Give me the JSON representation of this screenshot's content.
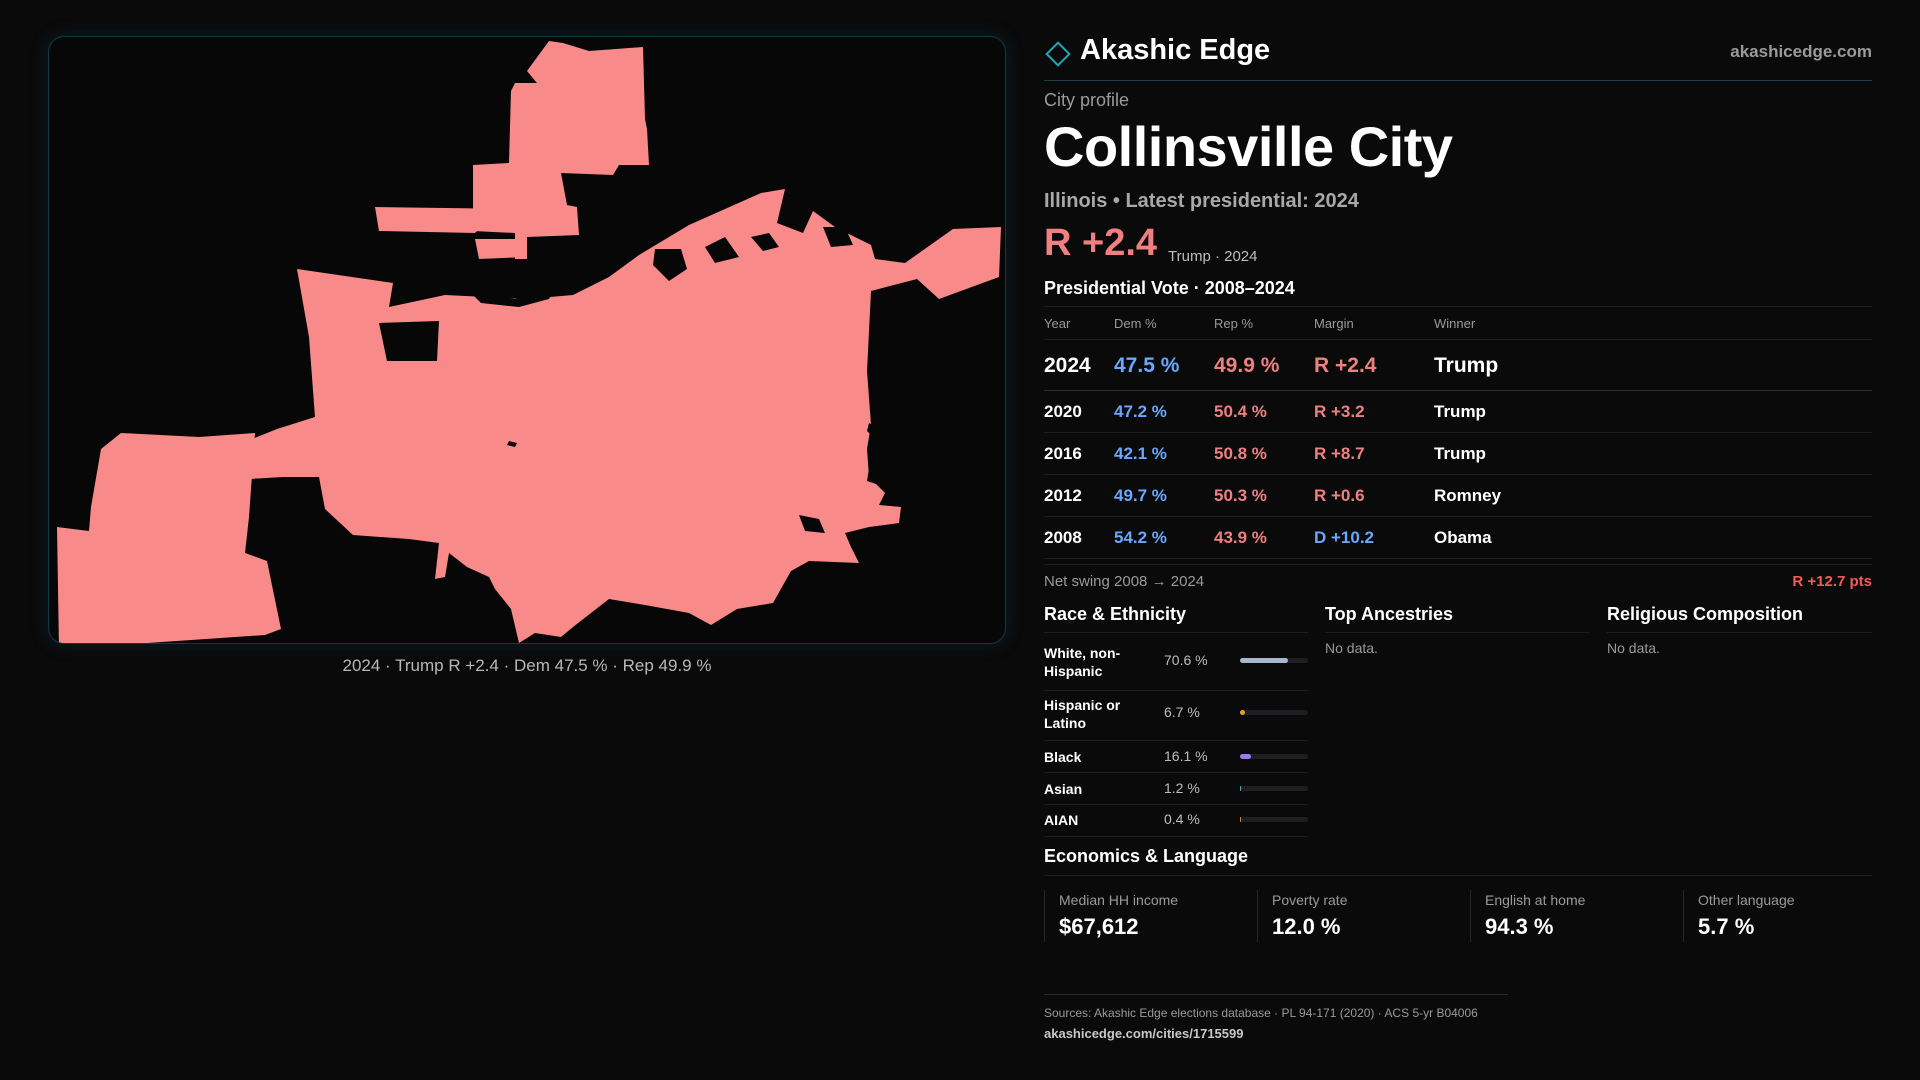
{
  "brand": {
    "name": "Akashic Edge",
    "url": "akashicedge.com"
  },
  "profile": {
    "label": "City profile",
    "city": "Collinsville City",
    "subtitle": "Illinois • Latest presidential: 2024",
    "headline_margin": "R +2.4",
    "headline_note": "Trump · 2024"
  },
  "map": {
    "caption": "2024 · Trump R +2.4 · Dem 47.5 % · Rep 49.9 %",
    "fill_color": "#f98a8a",
    "border_color": "#123a44"
  },
  "vote": {
    "title": "Presidential Vote · 2008–2024",
    "headers": {
      "year": "Year",
      "dem": "Dem %",
      "rep": "Rep %",
      "margin": "Margin",
      "winner": "Winner"
    },
    "rows": [
      {
        "year": "2024",
        "dem": "47.5 %",
        "rep": "49.9 %",
        "margin": "R +2.4",
        "winner": "Trump",
        "party": "R"
      },
      {
        "year": "2020",
        "dem": "47.2 %",
        "rep": "50.4 %",
        "margin": "R +3.2",
        "winner": "Trump",
        "party": "R"
      },
      {
        "year": "2016",
        "dem": "42.1 %",
        "rep": "50.8 %",
        "margin": "R +8.7",
        "winner": "Trump",
        "party": "R"
      },
      {
        "year": "2012",
        "dem": "49.7 %",
        "rep": "50.3 %",
        "margin": "R +0.6",
        "winner": "Romney",
        "party": "R"
      },
      {
        "year": "2008",
        "dem": "54.2 %",
        "rep": "43.9 %",
        "margin": "D +10.2",
        "winner": "Obama",
        "party": "D"
      }
    ],
    "swing_label": "Net swing 2008 → 2024",
    "swing_value": "R +12.7 pts"
  },
  "race": {
    "title": "Race & Ethnicity",
    "rows": [
      {
        "label": "White, non-Hispanic",
        "pct": "70.6 %",
        "value": 70.6,
        "color": "#a9b6cf"
      },
      {
        "label": "Hispanic or Latino",
        "pct": "6.7 %",
        "value": 6.7,
        "color": "#e3a12c"
      },
      {
        "label": "Black",
        "pct": "16.1 %",
        "value": 16.1,
        "color": "#9b7cf0"
      },
      {
        "label": "Asian",
        "pct": "1.2 %",
        "value": 1.2,
        "color": "#3fb6a8"
      },
      {
        "label": "AIAN",
        "pct": "0.4 %",
        "value": 0.4,
        "color": "#e07a3c"
      }
    ]
  },
  "ancestries": {
    "title": "Top Ancestries",
    "empty": "No data."
  },
  "religion": {
    "title": "Religious Composition",
    "empty": "No data."
  },
  "economics": {
    "title": "Economics & Language",
    "cells": [
      {
        "label": "Median HH income",
        "value": "$67,612"
      },
      {
        "label": "Poverty rate",
        "value": "12.0 %"
      },
      {
        "label": "English at home",
        "value": "94.3 %"
      },
      {
        "label": "Other language",
        "value": "5.7 %"
      }
    ]
  },
  "sources": {
    "text": "Sources: Akashic Edge elections database · PL 94-171 (2020) · ACS 5-yr B04006",
    "url": "akashicedge.com/cities/1715599"
  }
}
